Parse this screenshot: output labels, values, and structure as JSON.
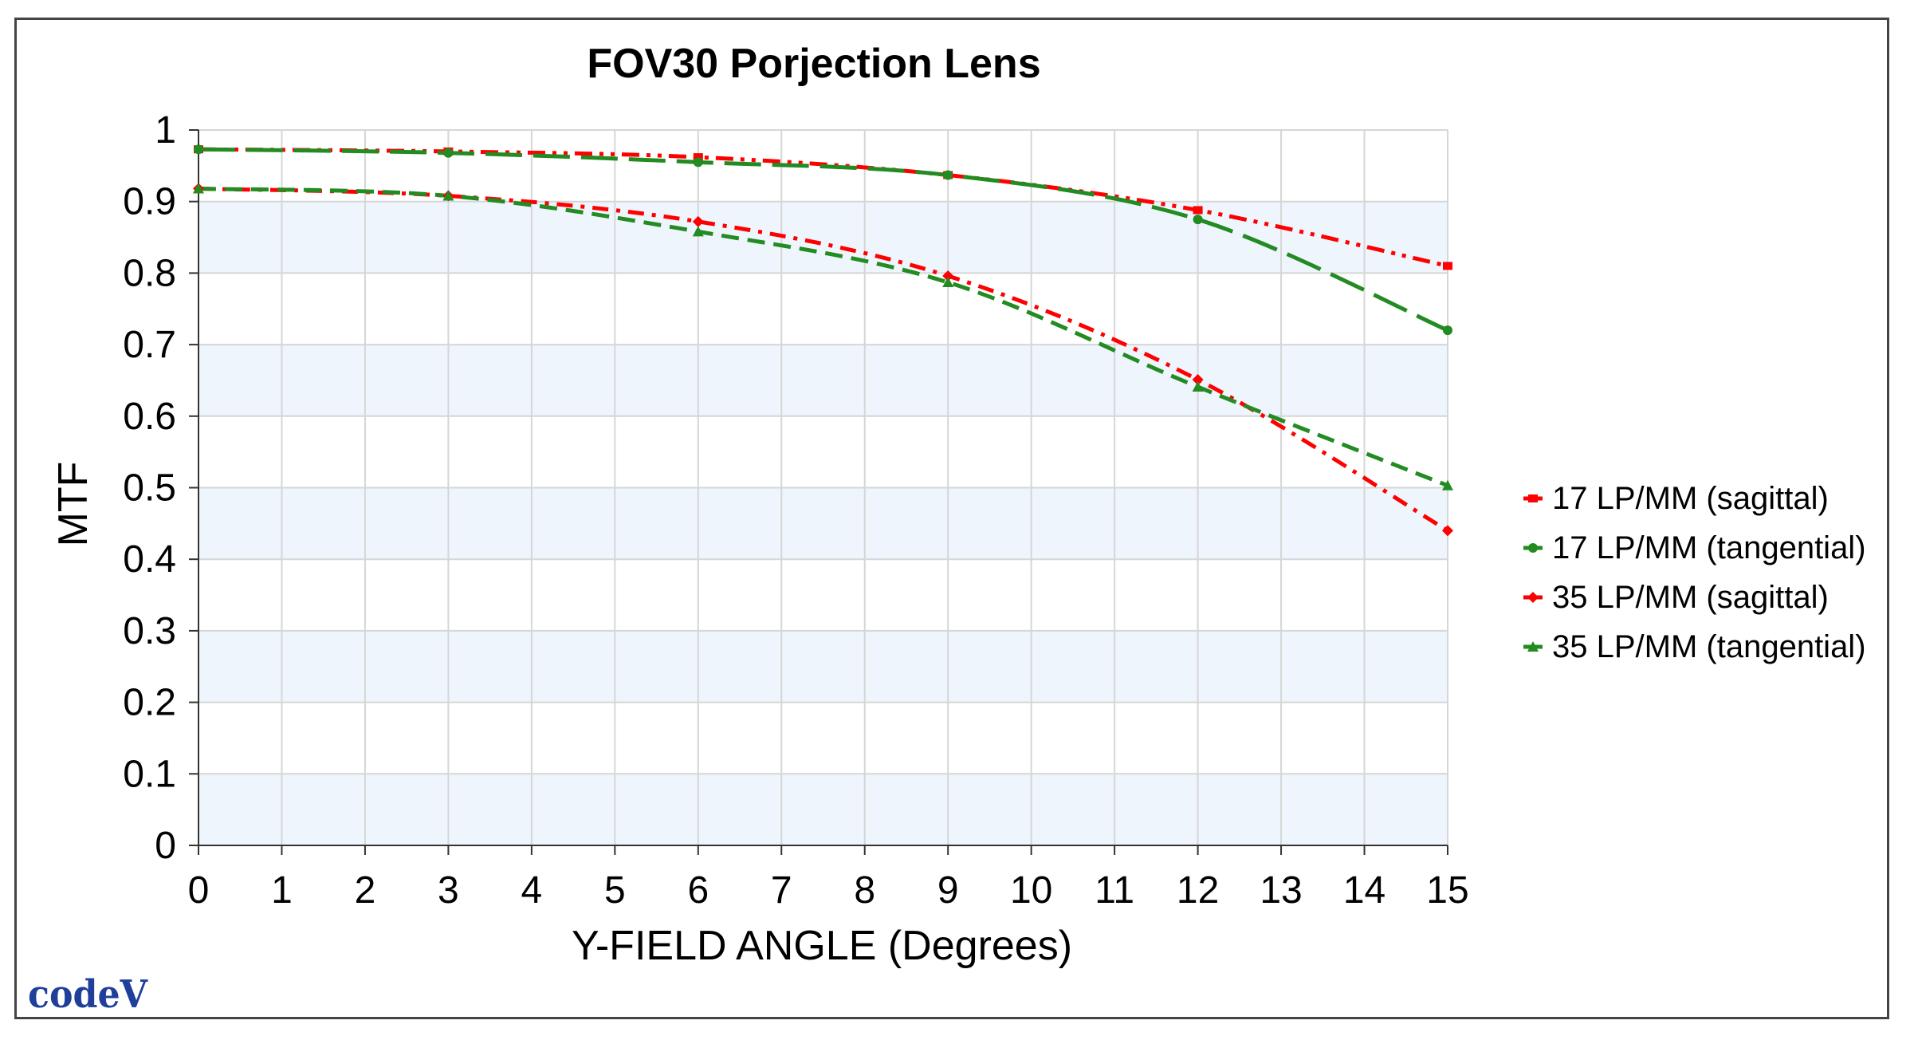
{
  "chart_data": {
    "type": "line",
    "title": "FOV30 Porjection Lens",
    "xlabel": "Y-FIELD ANGLE (Degrees)",
    "ylabel": "MTF",
    "xlim": [
      0,
      15
    ],
    "ylim": [
      0,
      1
    ],
    "x_ticks": [
      "0",
      "1",
      "2",
      "3",
      "4",
      "5",
      "6",
      "7",
      "8",
      "9",
      "10",
      "11",
      "12",
      "13",
      "14",
      "15"
    ],
    "y_ticks": [
      "0",
      "0.1",
      "0.2",
      "0.3",
      "0.4",
      "0.5",
      "0.6",
      "0.7",
      "0.8",
      "0.9",
      "1"
    ],
    "grid": true,
    "legend_position": "right",
    "x": [
      0,
      3,
      6,
      9,
      12,
      15
    ],
    "series": [
      {
        "name": "17 LP/MM (sagittal)",
        "values": [
          0.973,
          0.97,
          0.962,
          0.937,
          0.888,
          0.81
        ],
        "color": "#ff0000",
        "dash": "dash-dot-dot",
        "marker": "square"
      },
      {
        "name": "17 LP/MM (tangential)",
        "values": [
          0.973,
          0.968,
          0.955,
          0.937,
          0.875,
          0.72
        ],
        "color": "#228b22",
        "dash": "long-dash",
        "marker": "circle"
      },
      {
        "name": "35 LP/MM (sagittal)",
        "values": [
          0.918,
          0.908,
          0.872,
          0.796,
          0.651,
          0.44
        ],
        "color": "#ff0000",
        "dash": "dash-dot",
        "marker": "diamond"
      },
      {
        "name": "35 LP/MM (tangential)",
        "values": [
          0.918,
          0.908,
          0.858,
          0.787,
          0.641,
          0.503
        ],
        "color": "#228b22",
        "dash": "dash",
        "marker": "triangle"
      }
    ]
  },
  "logo": {
    "text": "codeV"
  }
}
